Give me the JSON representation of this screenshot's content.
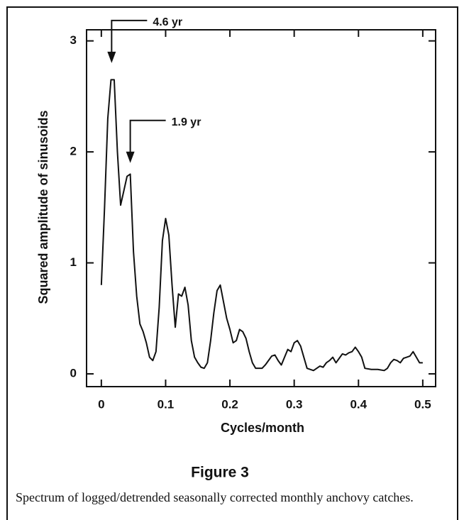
{
  "chart_data": {
    "type": "line",
    "title": "Figure 3",
    "caption": "Spectrum of logged/detrended seasonally corrected monthly anchovy catches.",
    "xlabel": "Cycles/month",
    "ylabel": "Squared amplitude of sinusoids",
    "xlim": [
      -0.023,
      0.52
    ],
    "ylim": [
      -0.115,
      3.1
    ],
    "xticks": [
      {
        "value": 0,
        "label": "0"
      },
      {
        "value": 0.1,
        "label": "0.1"
      },
      {
        "value": 0.2,
        "label": "0.2"
      },
      {
        "value": 0.3,
        "label": "0.3"
      },
      {
        "value": 0.4,
        "label": "0.4"
      },
      {
        "value": 0.5,
        "label": "0.5"
      }
    ],
    "yticks": [
      0,
      1,
      2,
      3
    ],
    "color": "#111111",
    "annotations": [
      {
        "text": "4.6 yr",
        "x": 0.016,
        "y": 2.8
      },
      {
        "text": "1.9 yr",
        "x": 0.045,
        "y": 1.9
      }
    ],
    "x": [
      0,
      0.005,
      0.01,
      0.015,
      0.02,
      0.025,
      0.03,
      0.035,
      0.04,
      0.045,
      0.05,
      0.055,
      0.06,
      0.065,
      0.07,
      0.075,
      0.08,
      0.085,
      0.09,
      0.095,
      0.1,
      0.105,
      0.11,
      0.115,
      0.12,
      0.125,
      0.13,
      0.135,
      0.14,
      0.145,
      0.15,
      0.155,
      0.16,
      0.165,
      0.17,
      0.175,
      0.18,
      0.185,
      0.19,
      0.195,
      0.2,
      0.205,
      0.21,
      0.215,
      0.22,
      0.225,
      0.23,
      0.235,
      0.24,
      0.25,
      0.255,
      0.26,
      0.265,
      0.27,
      0.275,
      0.28,
      0.285,
      0.29,
      0.295,
      0.3,
      0.305,
      0.31,
      0.315,
      0.32,
      0.33,
      0.335,
      0.34,
      0.345,
      0.35,
      0.355,
      0.36,
      0.365,
      0.37,
      0.375,
      0.38,
      0.385,
      0.39,
      0.395,
      0.4,
      0.405,
      0.41,
      0.42,
      0.43,
      0.44,
      0.445,
      0.45,
      0.455,
      0.46,
      0.465,
      0.47,
      0.475,
      0.48,
      0.485,
      0.49,
      0.495,
      0.5
    ],
    "values": [
      0.8,
      1.5,
      2.3,
      2.65,
      2.65,
      2.0,
      1.52,
      1.65,
      1.78,
      1.8,
      1.1,
      0.7,
      0.45,
      0.38,
      0.28,
      0.15,
      0.12,
      0.2,
      0.6,
      1.2,
      1.4,
      1.25,
      0.8,
      0.42,
      0.72,
      0.7,
      0.78,
      0.62,
      0.3,
      0.15,
      0.1,
      0.06,
      0.05,
      0.1,
      0.3,
      0.55,
      0.75,
      0.8,
      0.65,
      0.5,
      0.4,
      0.28,
      0.3,
      0.4,
      0.38,
      0.32,
      0.2,
      0.1,
      0.05,
      0.05,
      0.08,
      0.12,
      0.16,
      0.17,
      0.12,
      0.08,
      0.15,
      0.22,
      0.2,
      0.28,
      0.3,
      0.25,
      0.15,
      0.05,
      0.03,
      0.05,
      0.07,
      0.06,
      0.1,
      0.12,
      0.15,
      0.1,
      0.14,
      0.18,
      0.17,
      0.19,
      0.2,
      0.24,
      0.2,
      0.15,
      0.05,
      0.04,
      0.04,
      0.03,
      0.05,
      0.1,
      0.13,
      0.12,
      0.1,
      0.14,
      0.15,
      0.16,
      0.2,
      0.15,
      0.1,
      0.1
    ]
  }
}
